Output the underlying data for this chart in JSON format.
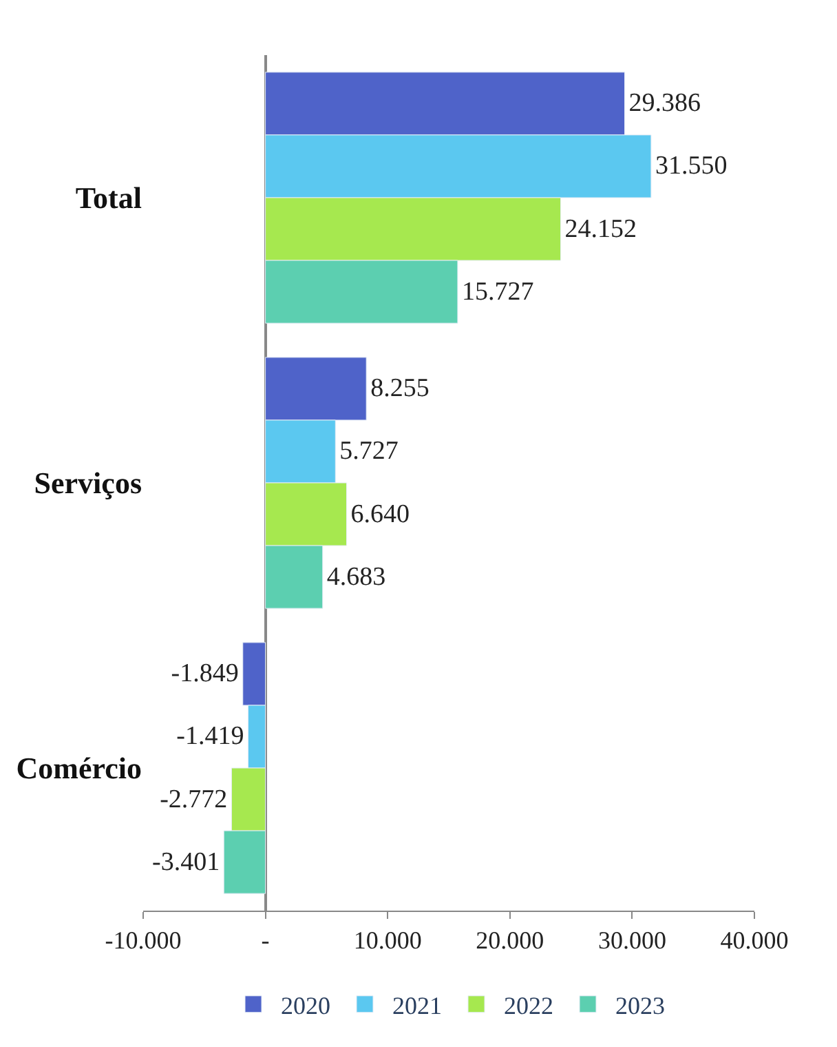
{
  "chart_data": {
    "type": "bar",
    "orientation": "horizontal",
    "categories": [
      "Total",
      "Serviços",
      "Comércio"
    ],
    "series": [
      {
        "name": "2020",
        "color": "#4f63c9",
        "values": [
          29386,
          8255,
          -1849
        ],
        "value_labels": [
          "29.386",
          "8.255",
          "-1.849"
        ]
      },
      {
        "name": "2021",
        "color": "#5bc8f0",
        "values": [
          31550,
          5727,
          -1419
        ],
        "value_labels": [
          "31.550",
          "5.727",
          "-1.419"
        ]
      },
      {
        "name": "2022",
        "color": "#a6e84f",
        "values": [
          24152,
          6640,
          -2772
        ],
        "value_labels": [
          "24.152",
          "6.640",
          "-2.772"
        ]
      },
      {
        "name": "2023",
        "color": "#5ccfb0",
        "values": [
          15727,
          4683,
          -3401
        ],
        "value_labels": [
          "15.727",
          "4.683",
          "-3.401"
        ]
      }
    ],
    "xlim": [
      -10000,
      40000
    ],
    "xticks": [
      {
        "value": -10000,
        "label": "-10.000"
      },
      {
        "value": 0,
        "label": "-"
      },
      {
        "value": 10000,
        "label": "10.000"
      },
      {
        "value": 20000,
        "label": "20.000"
      },
      {
        "value": 30000,
        "label": "30.000"
      },
      {
        "value": 40000,
        "label": "40.000"
      }
    ],
    "legend": "bottom"
  }
}
